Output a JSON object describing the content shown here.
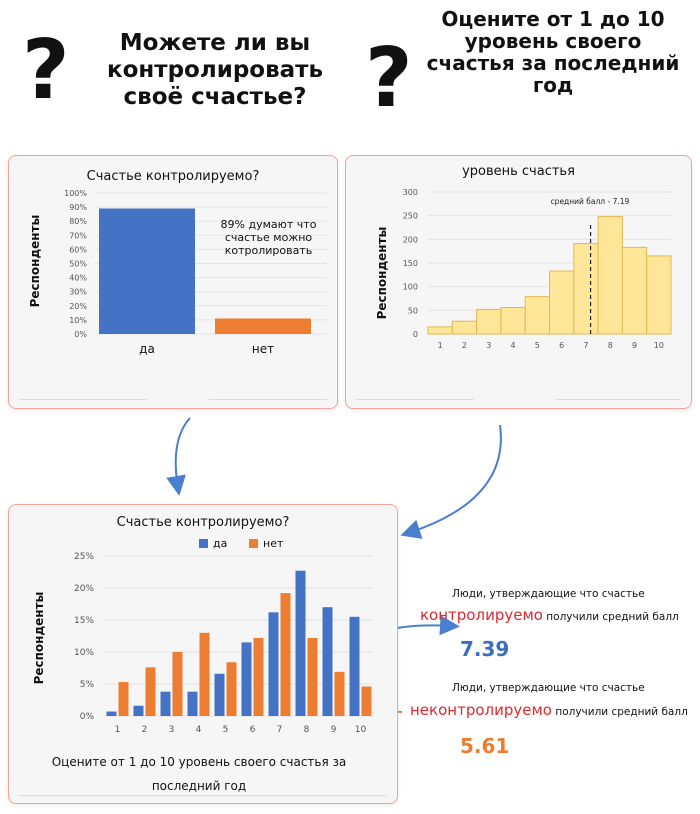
{
  "header": {
    "left_question": "Можете ли вы контролировать своё счастье?",
    "right_question": "Оцените от 1 до 10 уровень своего счастья за последний год",
    "question_mark": "?"
  },
  "colors": {
    "blue": "#4472c4",
    "orange": "#ed7d31",
    "yellow_fill": "#ffe699",
    "yellow_stroke": "#e2b950",
    "accent_red": "#e0282e",
    "num_blue": "#3d6fc0",
    "num_orange": "#ed7d31",
    "arrow": "#4a7fd0"
  },
  "annotations": {
    "controllable_prefix": "Люди, утверждающие что счастье",
    "controllable_word": "контролируемо",
    "controllable_suffix": "получили средний балл",
    "controllable_value": "7.39",
    "uncontrollable_prefix": "Люди, утверждающие что счастье",
    "uncontrollable_word": "неконтролируемо",
    "uncontrollable_suffix": "получили средний балл",
    "uncontrollable_value": "5.61"
  },
  "chart_data": [
    {
      "type": "bar",
      "title": "Счастье контролируемо?",
      "ylabel": "Респонденты",
      "xlabel": "",
      "categories": [
        "да",
        "нет"
      ],
      "values": [
        0.89,
        0.11
      ],
      "value_unit": "fraction",
      "ylim": [
        0,
        1
      ],
      "yticks": [
        "0%",
        "10%",
        "20%",
        "30%",
        "40%",
        "50%",
        "60%",
        "70%",
        "80%",
        "90%",
        "100%"
      ],
      "annotation": "89% думают что счастье можно котролировать"
    },
    {
      "type": "bar",
      "title": "уровень счастья",
      "ylabel": "Респонденты",
      "xlabel": "",
      "categories": [
        "1",
        "2",
        "3",
        "4",
        "5",
        "6",
        "7",
        "8",
        "9",
        "10"
      ],
      "values": [
        15,
        27,
        52,
        56,
        79,
        133,
        191,
        248,
        183,
        165
      ],
      "ylim": [
        0,
        300
      ],
      "yticks": [
        "0",
        "50",
        "100",
        "150",
        "200",
        "250",
        "300"
      ],
      "mean_line": {
        "value": 7.19,
        "label": "средний балл - 7.19"
      }
    },
    {
      "type": "bar",
      "title": "Счастье контролируемо?",
      "ylabel": "Респонденты",
      "xlabel": "Оцените от 1 до 10 уровень своего счастья за последний год",
      "categories": [
        "1",
        "2",
        "3",
        "4",
        "5",
        "6",
        "7",
        "8",
        "9",
        "10"
      ],
      "series": [
        {
          "name": "да",
          "values": [
            0.7,
            1.6,
            3.8,
            3.8,
            6.6,
            11.5,
            16.2,
            22.7,
            17.0,
            15.5
          ]
        },
        {
          "name": "нет",
          "values": [
            5.3,
            7.6,
            10.0,
            13.0,
            8.4,
            12.2,
            19.2,
            12.2,
            6.9,
            4.6
          ]
        }
      ],
      "value_unit": "percent",
      "ylim": [
        0,
        25
      ],
      "yticks": [
        "0%",
        "5%",
        "10%",
        "15%",
        "20%",
        "25%"
      ],
      "legend": "top"
    }
  ]
}
